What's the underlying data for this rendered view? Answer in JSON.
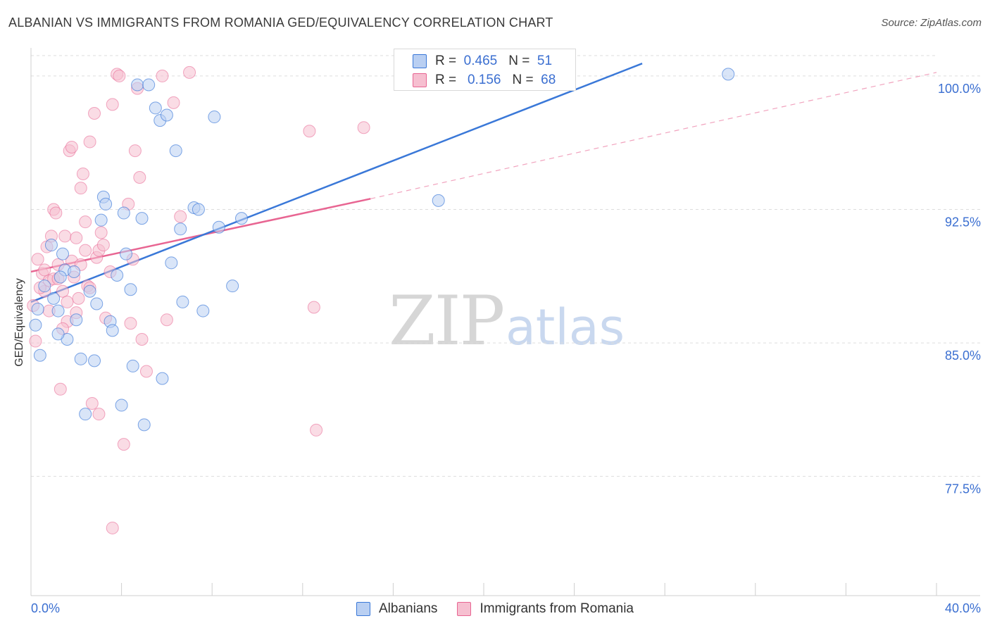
{
  "header": {
    "title": "ALBANIAN VS IMMIGRANTS FROM ROMANIA GED/EQUIVALENCY CORRELATION CHART",
    "source": "Source: ZipAtlas.com"
  },
  "watermark": {
    "zip": "ZIP",
    "atlas": "atlas"
  },
  "colors": {
    "blue": "#3a78d8",
    "blue_fill": "#b9cff2",
    "pink": "#e86592",
    "pink_fill": "#f6bfd0",
    "grid": "#dddddd",
    "tick_label": "#3b6fd1"
  },
  "legend": {
    "rows": [
      {
        "r_label": "R =",
        "r_value": "0.465",
        "n_label": "N =",
        "n_value": "51"
      },
      {
        "r_label": "R =",
        "r_value": "0.156",
        "n_label": "N =",
        "n_value": "68"
      }
    ],
    "bottom": [
      "Albanians",
      "Immigrants from Romania"
    ]
  },
  "chart_data": {
    "type": "scatter",
    "title": "ALBANIAN VS IMMIGRANTS FROM ROMANIA GED/EQUIVALENCY CORRELATION CHART",
    "xlabel": "",
    "ylabel": "GED/Equivalency",
    "xlim": [
      0,
      40
    ],
    "ylim": [
      70.8,
      101.5
    ],
    "x_tick_labels": [
      "0.0%",
      "40.0%"
    ],
    "y_ticks": [
      77.5,
      85.0,
      92.5,
      100.0
    ],
    "y_tick_labels": [
      "77.5%",
      "85.0%",
      "92.5%",
      "100.0%"
    ],
    "legend_position": "top-center",
    "series": [
      {
        "name": "Albanians",
        "color": "blue",
        "R": 0.465,
        "N": 51,
        "trend": {
          "x0": 0.0,
          "y0": 87.3,
          "x1": 27.0,
          "y1": 100.7
        },
        "points": [
          [
            0.2,
            86.0
          ],
          [
            0.4,
            84.3
          ],
          [
            0.6,
            88.2
          ],
          [
            0.9,
            90.5
          ],
          [
            1.0,
            87.5
          ],
          [
            1.2,
            86.8
          ],
          [
            1.4,
            90.0
          ],
          [
            1.5,
            89.1
          ],
          [
            1.6,
            85.2
          ],
          [
            1.2,
            85.5
          ],
          [
            1.9,
            89.0
          ],
          [
            2.0,
            86.3
          ],
          [
            2.2,
            84.1
          ],
          [
            2.4,
            81.0
          ],
          [
            2.6,
            87.9
          ],
          [
            2.8,
            84.0
          ],
          [
            2.9,
            87.2
          ],
          [
            3.1,
            91.9
          ],
          [
            3.2,
            93.2
          ],
          [
            3.3,
            92.8
          ],
          [
            3.5,
            86.2
          ],
          [
            3.6,
            85.7
          ],
          [
            3.8,
            88.8
          ],
          [
            4.0,
            81.5
          ],
          [
            4.1,
            92.3
          ],
          [
            4.2,
            90.0
          ],
          [
            4.4,
            88.0
          ],
          [
            4.5,
            83.7
          ],
          [
            4.7,
            99.5
          ],
          [
            4.9,
            92.0
          ],
          [
            5.0,
            80.4
          ],
          [
            5.2,
            99.5
          ],
          [
            5.5,
            98.2
          ],
          [
            5.7,
            97.5
          ],
          [
            5.8,
            83.0
          ],
          [
            6.0,
            97.8
          ],
          [
            6.2,
            89.5
          ],
          [
            6.4,
            95.8
          ],
          [
            6.6,
            91.4
          ],
          [
            6.7,
            87.3
          ],
          [
            7.2,
            92.6
          ],
          [
            7.4,
            92.5
          ],
          [
            7.6,
            86.8
          ],
          [
            8.1,
            97.7
          ],
          [
            8.3,
            91.5
          ],
          [
            8.9,
            88.2
          ],
          [
            9.3,
            92.0
          ],
          [
            18.0,
            93.0
          ],
          [
            30.8,
            100.1
          ],
          [
            0.3,
            86.9
          ],
          [
            1.3,
            88.7
          ]
        ]
      },
      {
        "name": "Immigrants from Romania",
        "color": "pink",
        "R": 0.156,
        "N": 68,
        "trend_solid": {
          "x0": 0.0,
          "y0": 89.0,
          "x1": 15.0,
          "y1": 93.1
        },
        "trend_dashed": {
          "x0": 15.0,
          "y0": 93.1,
          "x1": 40.0,
          "y1": 100.2
        },
        "points": [
          [
            0.1,
            87.1
          ],
          [
            0.2,
            85.1
          ],
          [
            0.3,
            89.7
          ],
          [
            0.5,
            88.9
          ],
          [
            0.6,
            87.9
          ],
          [
            0.7,
            90.4
          ],
          [
            0.8,
            88.5
          ],
          [
            0.9,
            91.0
          ],
          [
            1.0,
            92.5
          ],
          [
            1.1,
            92.3
          ],
          [
            1.2,
            89.4
          ],
          [
            1.3,
            82.4
          ],
          [
            1.4,
            87.9
          ],
          [
            1.5,
            91.0
          ],
          [
            1.6,
            86.2
          ],
          [
            1.7,
            95.8
          ],
          [
            1.8,
            96.0
          ],
          [
            1.9,
            88.7
          ],
          [
            2.0,
            86.7
          ],
          [
            2.1,
            87.5
          ],
          [
            2.2,
            93.7
          ],
          [
            2.3,
            94.5
          ],
          [
            2.4,
            91.8
          ],
          [
            2.5,
            88.2
          ],
          [
            2.6,
            96.3
          ],
          [
            2.7,
            81.6
          ],
          [
            2.8,
            97.9
          ],
          [
            2.9,
            89.8
          ],
          [
            3.0,
            90.2
          ],
          [
            3.1,
            91.2
          ],
          [
            3.2,
            90.5
          ],
          [
            3.3,
            86.4
          ],
          [
            3.5,
            89.0
          ],
          [
            3.6,
            98.4
          ],
          [
            3.8,
            100.1
          ],
          [
            3.9,
            100.0
          ],
          [
            4.1,
            79.3
          ],
          [
            4.3,
            92.8
          ],
          [
            4.4,
            86.1
          ],
          [
            4.5,
            89.7
          ],
          [
            4.6,
            95.8
          ],
          [
            4.7,
            99.3
          ],
          [
            4.8,
            94.3
          ],
          [
            4.9,
            85.2
          ],
          [
            5.1,
            83.4
          ],
          [
            6.0,
            86.3
          ],
          [
            6.3,
            98.5
          ],
          [
            7.0,
            100.2
          ],
          [
            3.0,
            81.0
          ],
          [
            3.6,
            74.6
          ],
          [
            12.3,
            96.9
          ],
          [
            12.5,
            87.0
          ],
          [
            12.6,
            80.1
          ],
          [
            14.7,
            97.1
          ],
          [
            0.4,
            88.1
          ],
          [
            0.6,
            89.1
          ],
          [
            0.8,
            86.8
          ],
          [
            1.0,
            88.6
          ],
          [
            1.2,
            88.6
          ],
          [
            1.4,
            85.8
          ],
          [
            1.6,
            87.3
          ],
          [
            1.8,
            89.6
          ],
          [
            2.0,
            90.9
          ],
          [
            2.2,
            89.4
          ],
          [
            2.4,
            90.2
          ],
          [
            2.6,
            88.1
          ],
          [
            5.8,
            100.0
          ],
          [
            6.6,
            92.1
          ]
        ]
      }
    ]
  }
}
